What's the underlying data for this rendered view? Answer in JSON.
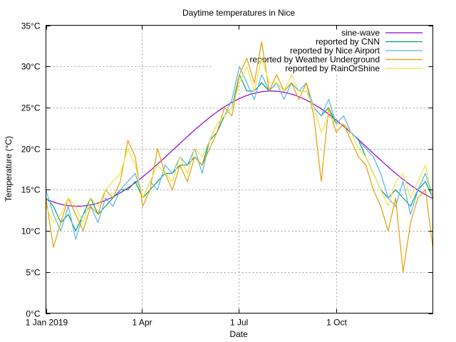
{
  "chart_data": {
    "type": "line",
    "title": "Daytime temperatures in Nice",
    "xlabel": "Date",
    "ylabel": "Temperature (°C)",
    "ylim": [
      0,
      35
    ],
    "xlim": [
      "2019-01-01",
      "2019-12-31"
    ],
    "grid": true,
    "legend_position": "top-right",
    "y_ticks": [
      0,
      5,
      10,
      15,
      20,
      25,
      30,
      35
    ],
    "y_tick_labels": [
      "0°C",
      "5°C",
      "10°C",
      "15°C",
      "20°C",
      "25°C",
      "30°C",
      "35°C"
    ],
    "x_ticks": [
      "2019-01-01",
      "2019-04-01",
      "2019-07-01",
      "2019-10-01"
    ],
    "x_tick_labels": [
      "1 Jan 2019",
      "1 Apr",
      "1 Jul",
      "1 Oct"
    ],
    "sampling_interval_days": 7,
    "x_start": "2019-01-01",
    "series": [
      {
        "name": "sine-wave",
        "color": "#9400d3",
        "function": {
          "mean": 20,
          "amplitude": 7,
          "peak_date": "2019-08-01"
        }
      },
      {
        "name": "reported by CNN",
        "color": "#009e73",
        "values": [
          14,
          13,
          11,
          12,
          10,
          12,
          14,
          12,
          13,
          14,
          15,
          15,
          16,
          14,
          15,
          16,
          17,
          17,
          18,
          18,
          19,
          18,
          21,
          22,
          24,
          25,
          29,
          27,
          27,
          28,
          27,
          28,
          27,
          28,
          27,
          27,
          25,
          24,
          25,
          23,
          23,
          22,
          21,
          19,
          17,
          15,
          14,
          15,
          14,
          13,
          15,
          16,
          14
        ]
      },
      {
        "name": "reported by Nice Airport",
        "color": "#56b4e9",
        "values": [
          15,
          12,
          10,
          13,
          9,
          12,
          13,
          11,
          14,
          13,
          15,
          16,
          17,
          14,
          16,
          15,
          18,
          17,
          19,
          18,
          20,
          17,
          21,
          23,
          24,
          26,
          30,
          28,
          26,
          29,
          27,
          28,
          26,
          28,
          27,
          28,
          25,
          24,
          26,
          23,
          24,
          22,
          21,
          20,
          19,
          17,
          14,
          13,
          16,
          12,
          15,
          17,
          14
        ]
      },
      {
        "name": "reported by Weather Underground",
        "color": "#e69f00",
        "values": [
          14,
          8,
          11,
          14,
          12,
          10,
          13,
          12,
          15,
          14,
          16,
          21,
          19,
          13,
          15,
          20,
          17,
          15,
          18,
          16,
          19,
          18,
          20,
          22,
          25,
          24,
          29,
          31,
          28,
          33,
          27,
          29,
          27,
          28,
          26,
          28,
          24,
          16,
          25,
          22,
          23,
          21,
          19,
          18,
          15,
          13,
          10,
          14,
          5,
          11,
          14,
          15,
          8
        ]
      },
      {
        "name": "reported by RainOrShine",
        "color": "#f0e442",
        "values": [
          13,
          11,
          12,
          14,
          13,
          11,
          14,
          13,
          15,
          16,
          17,
          20,
          18,
          14,
          16,
          18,
          17,
          16,
          19,
          17,
          20,
          19,
          21,
          23,
          24,
          25,
          28,
          30,
          27,
          31,
          28,
          28,
          27,
          29,
          27,
          27,
          25,
          22,
          24,
          23,
          23,
          22,
          20,
          19,
          17,
          15,
          13,
          16,
          17,
          14,
          16,
          18,
          14
        ]
      }
    ]
  }
}
